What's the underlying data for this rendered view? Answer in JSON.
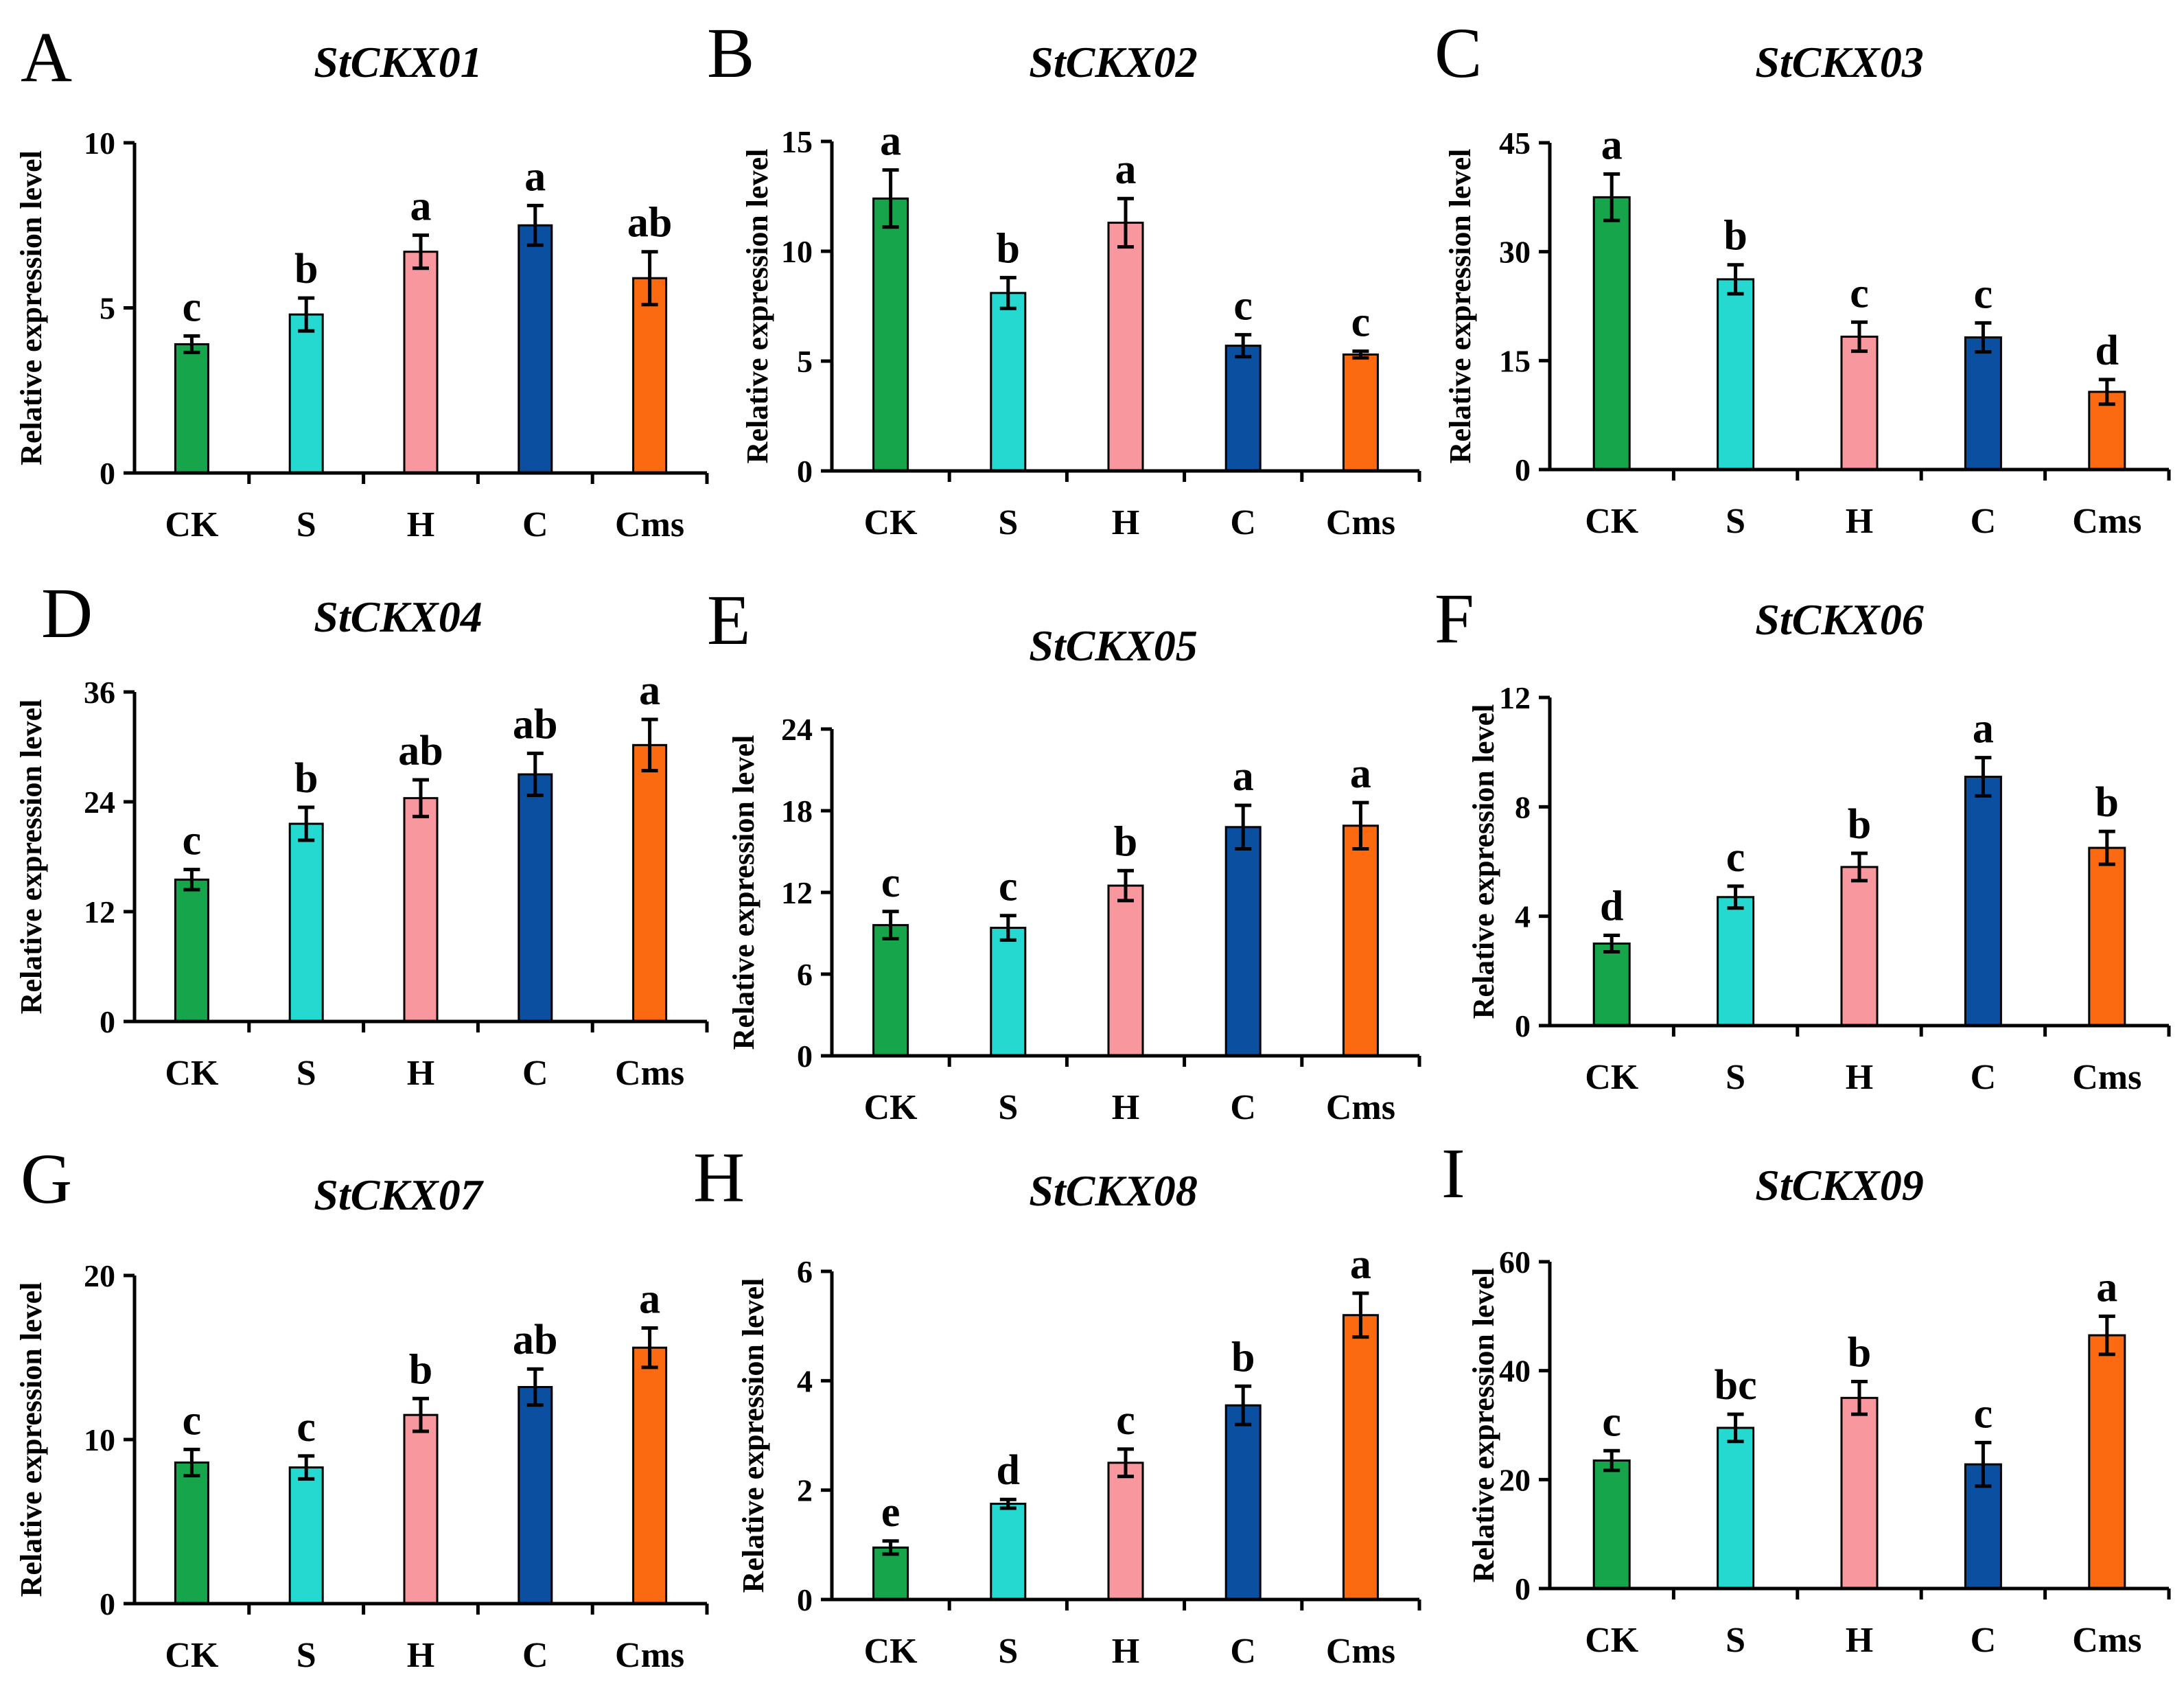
{
  "figure": {
    "ylabel": "Relative expression level",
    "categories": [
      "CK",
      "S",
      "H",
      "C",
      "Cms"
    ],
    "colors": [
      "#17a54b",
      "#25d8d0",
      "#f8989e",
      "#0b4fa1",
      "#fb6a10"
    ]
  },
  "chart_data": [
    {
      "type": "bar",
      "letter": "A",
      "title": "StCKX01",
      "ylabel": "Relative expression level",
      "categories": [
        "CK",
        "S",
        "H",
        "C",
        "Cms"
      ],
      "values": [
        3.9,
        4.8,
        6.7,
        7.5,
        5.9
      ],
      "errors": [
        0.25,
        0.5,
        0.5,
        0.6,
        0.8
      ],
      "letters": [
        "c",
        "b",
        "a",
        "a",
        "ab"
      ],
      "ylim": [
        0,
        10
      ],
      "yticks": [
        0,
        5,
        10
      ]
    },
    {
      "type": "bar",
      "letter": "B",
      "title": "StCKX02",
      "ylabel": "Relative expression level",
      "categories": [
        "CK",
        "S",
        "H",
        "C",
        "Cms"
      ],
      "values": [
        12.4,
        8.1,
        11.3,
        5.7,
        5.3
      ],
      "errors": [
        1.3,
        0.7,
        1.1,
        0.5,
        0.15
      ],
      "letters": [
        "a",
        "b",
        "a",
        "c",
        "c"
      ],
      "ylim": [
        0,
        15
      ],
      "yticks": [
        0,
        5,
        10,
        15
      ]
    },
    {
      "type": "bar",
      "letter": "C",
      "title": "StCKX03",
      "ylabel": "Relative expression level",
      "categories": [
        "CK",
        "S",
        "H",
        "C",
        "Cms"
      ],
      "values": [
        37.5,
        26.2,
        18.3,
        18.2,
        10.7
      ],
      "errors": [
        3.2,
        2.0,
        2.0,
        2.0,
        1.7
      ],
      "letters": [
        "a",
        "b",
        "c",
        "c",
        "d"
      ],
      "ylim": [
        0,
        45
      ],
      "yticks": [
        0,
        15,
        30,
        45
      ]
    },
    {
      "type": "bar",
      "letter": "D",
      "title": "StCKX04",
      "ylabel": "Relative expression level",
      "categories": [
        "CK",
        "S",
        "H",
        "C",
        "Cms"
      ],
      "values": [
        15.5,
        21.6,
        24.4,
        27.0,
        30.2
      ],
      "errors": [
        1.1,
        1.8,
        2.0,
        2.3,
        2.8
      ],
      "letters": [
        "c",
        "b",
        "ab",
        "ab",
        "a"
      ],
      "ylim": [
        0,
        36
      ],
      "yticks": [
        0,
        12,
        24,
        36
      ]
    },
    {
      "type": "bar",
      "letter": "E",
      "title": "StCKX05",
      "ylabel": "Relative expression level",
      "categories": [
        "CK",
        "S",
        "H",
        "C",
        "Cms"
      ],
      "values": [
        9.6,
        9.4,
        12.5,
        16.8,
        16.9
      ],
      "errors": [
        1.0,
        0.9,
        1.1,
        1.6,
        1.7
      ],
      "letters": [
        "c",
        "c",
        "b",
        "a",
        "a"
      ],
      "ylim": [
        0,
        24
      ],
      "yticks": [
        0,
        6,
        12,
        18,
        24
      ]
    },
    {
      "type": "bar",
      "letter": "F",
      "title": "StCKX06",
      "ylabel": "Relative expression level",
      "categories": [
        "CK",
        "S",
        "H",
        "C",
        "Cms"
      ],
      "values": [
        3.0,
        4.7,
        5.8,
        9.1,
        6.5
      ],
      "errors": [
        0.3,
        0.4,
        0.5,
        0.7,
        0.6
      ],
      "letters": [
        "d",
        "c",
        "b",
        "a",
        "b"
      ],
      "ylim": [
        0,
        12
      ],
      "yticks": [
        0,
        4,
        8,
        12
      ]
    },
    {
      "type": "bar",
      "letter": "G",
      "title": "StCKX07",
      "ylabel": "Relative expression level",
      "categories": [
        "CK",
        "S",
        "H",
        "C",
        "Cms"
      ],
      "values": [
        8.6,
        8.3,
        11.5,
        13.2,
        15.6
      ],
      "errors": [
        0.8,
        0.7,
        1.0,
        1.1,
        1.2
      ],
      "letters": [
        "c",
        "c",
        "b",
        "ab",
        "a"
      ],
      "ylim": [
        0,
        20
      ],
      "yticks": [
        0,
        10,
        20
      ]
    },
    {
      "type": "bar",
      "letter": "H",
      "title": "StCKX08",
      "ylabel": "Relative expression level",
      "categories": [
        "CK",
        "S",
        "H",
        "C",
        "Cms"
      ],
      "values": [
        0.95,
        1.75,
        2.5,
        3.55,
        5.2
      ],
      "errors": [
        0.12,
        0.08,
        0.25,
        0.35,
        0.4
      ],
      "letters": [
        "e",
        "d",
        "c",
        "b",
        "a"
      ],
      "ylim": [
        0,
        6
      ],
      "yticks": [
        0,
        2,
        4,
        6
      ]
    },
    {
      "type": "bar",
      "letter": "I",
      "title": "StCKX09",
      "ylabel": "Relative expression level",
      "categories": [
        "CK",
        "S",
        "H",
        "C",
        "Cms"
      ],
      "values": [
        23.5,
        29.5,
        35.0,
        22.8,
        46.5
      ],
      "errors": [
        1.8,
        2.5,
        3.0,
        4.0,
        3.5
      ],
      "letters": [
        "c",
        "bc",
        "b",
        "c",
        "a"
      ],
      "ylim": [
        0,
        60
      ],
      "yticks": [
        0,
        20,
        40,
        60
      ]
    }
  ]
}
